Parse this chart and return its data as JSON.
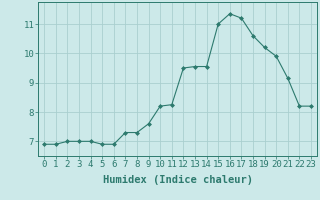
{
  "x": [
    0,
    1,
    2,
    3,
    4,
    5,
    6,
    7,
    8,
    9,
    10,
    11,
    12,
    13,
    14,
    15,
    16,
    17,
    18,
    19,
    20,
    21,
    22,
    23
  ],
  "y": [
    6.9,
    6.9,
    7.0,
    7.0,
    7.0,
    6.9,
    6.9,
    7.3,
    7.3,
    7.6,
    8.2,
    8.25,
    9.5,
    9.55,
    9.55,
    11.0,
    11.35,
    11.2,
    10.6,
    10.2,
    9.9,
    9.15,
    8.2,
    8.2
  ],
  "line_color": "#2d7a6e",
  "marker": "D",
  "marker_size": 2.0,
  "bg_color": "#cce9e9",
  "grid_color": "#aacfcf",
  "xlabel": "Humidex (Indice chaleur)",
  "xlim": [
    -0.5,
    23.5
  ],
  "ylim": [
    6.5,
    11.75
  ],
  "xticks": [
    0,
    1,
    2,
    3,
    4,
    5,
    6,
    7,
    8,
    9,
    10,
    11,
    12,
    13,
    14,
    15,
    16,
    17,
    18,
    19,
    20,
    21,
    22,
    23
  ],
  "yticks": [
    7,
    8,
    9,
    10,
    11
  ],
  "tick_fontsize": 6.5,
  "xlabel_fontsize": 7.5,
  "linewidth": 0.8
}
